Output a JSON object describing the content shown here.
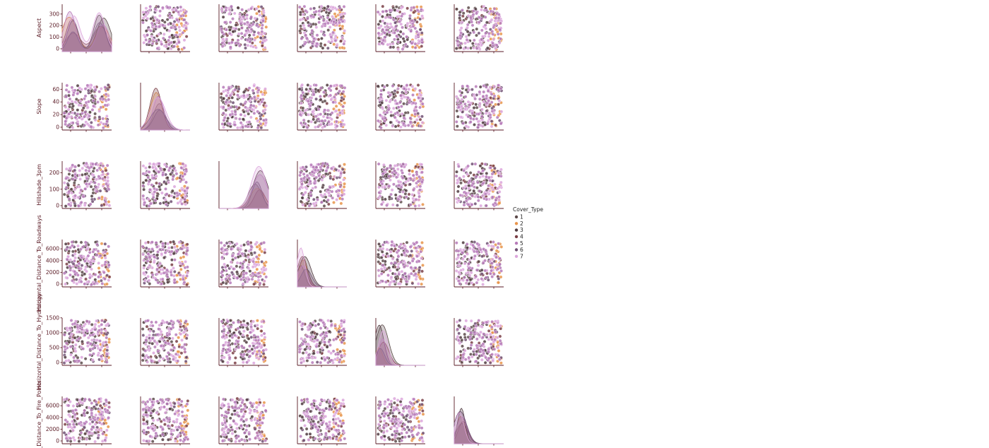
{
  "chart_data": {
    "type": "scatter",
    "layout": "pairplot",
    "hue": "Cover_Type",
    "variables": [
      "Aspect",
      "Slope",
      "Hillshade_3pm",
      "Horizontal_Distance_To_Roadways",
      "Horizontal_Distance_To_Hydrology",
      "Horizontal_Distance_To_Fire_Points"
    ],
    "ranges": {
      "Aspect": [
        0,
        360
      ],
      "Slope": [
        0,
        66
      ],
      "Hillshade_3pm": [
        0,
        254
      ],
      "Horizontal_Distance_To_Roadways": [
        0,
        7100
      ],
      "Horizontal_Distance_To_Hydrology": [
        0,
        1400
      ],
      "Horizontal_Distance_To_Fire_Points": [
        0,
        7100
      ]
    },
    "yticks": {
      "Aspect": [
        "0",
        "100",
        "200",
        "300"
      ],
      "Slope": [
        "0",
        "20",
        "40",
        "60"
      ],
      "Hillshade_3pm": [
        "0",
        "100",
        "200"
      ],
      "Horizontal_Distance_To_Roadways": [
        "0",
        "2000",
        "4000",
        "6000"
      ],
      "Horizontal_Distance_To_Hydrology": [
        "0",
        "500",
        "1000",
        "1500"
      ],
      "Horizontal_Distance_To_Fire_Points": [
        "0",
        "2000",
        "4000",
        "6000"
      ]
    },
    "ytick_values": {
      "Aspect": [
        0,
        100,
        200,
        300
      ],
      "Slope": [
        0,
        20,
        40,
        60
      ],
      "Hillshade_3pm": [
        0,
        100,
        200
      ],
      "Horizontal_Distance_To_Roadways": [
        0,
        2000,
        4000,
        6000
      ],
      "Horizontal_Distance_To_Hydrology": [
        0,
        500,
        1000,
        1500
      ],
      "Horizontal_Distance_To_Fire_Points": [
        0,
        2000,
        4000,
        6000
      ]
    },
    "ylabels": [
      "Aspect",
      "Slope",
      "Hillshade_3pm",
      "Horizontal_Distance_To_Roadways",
      "Horizontal_Distance_To_Hydrology",
      "ntal_Distance_To_Fire_Points"
    ],
    "series": [
      {
        "name": "1",
        "color": "#5c4a4a"
      },
      {
        "name": "2",
        "color": "#e8944a"
      },
      {
        "name": "3",
        "color": "#4f3a40"
      },
      {
        "name": "4",
        "color": "#7a3f46"
      },
      {
        "name": "5",
        "color": "#b67ab8"
      },
      {
        "name": "6",
        "color": "#6e4f72"
      },
      {
        "name": "7",
        "color": "#dca6dc"
      }
    ],
    "legend": {
      "title": "Cover_Type",
      "position": "right"
    }
  }
}
